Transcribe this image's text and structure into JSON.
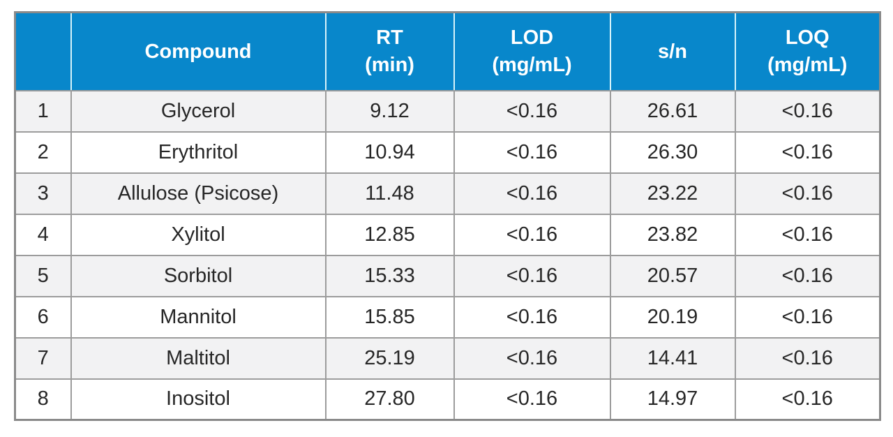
{
  "chart_data": {
    "type": "table",
    "columns": [
      "",
      "Compound",
      "RT (min)",
      "LOD (mg/mL)",
      "s/n",
      "LOQ (mg/mL)"
    ],
    "rows": [
      [
        "1",
        "Glycerol",
        "9.12",
        "<0.16",
        "26.61",
        "<0.16"
      ],
      [
        "2",
        "Erythritol",
        "10.94",
        "<0.16",
        "26.30",
        "<0.16"
      ],
      [
        "3",
        "Allulose (Psicose)",
        "11.48",
        "<0.16",
        "23.22",
        "<0.16"
      ],
      [
        "4",
        "Xylitol",
        "12.85",
        "<0.16",
        "23.82",
        "<0.16"
      ],
      [
        "5",
        "Sorbitol",
        "15.33",
        "<0.16",
        "20.57",
        "<0.16"
      ],
      [
        "6",
        "Mannitol",
        "15.85",
        "<0.16",
        "20.19",
        "<0.16"
      ],
      [
        "7",
        "Maltitol",
        "25.19",
        "<0.16",
        "14.41",
        "<0.16"
      ],
      [
        "8",
        "Inositol",
        "27.80",
        "<0.16",
        "14.97",
        "<0.16"
      ]
    ]
  },
  "header_lines": [
    [
      ""
    ],
    [
      "Compound"
    ],
    [
      "RT",
      "(min)"
    ],
    [
      "LOD",
      "(mg/mL)"
    ],
    [
      "s/n"
    ],
    [
      "LOQ",
      "(mg/mL)"
    ]
  ],
  "colors": {
    "header_bg": "#0887cb",
    "header_text": "#ffffff",
    "header_divider": "#d7f3fa",
    "border": "#9c9c9c",
    "border_outer": "#8a8a8a",
    "row_odd_bg": "#f2f2f3",
    "row_even_bg": "#ffffff",
    "body_text": "#262626"
  }
}
